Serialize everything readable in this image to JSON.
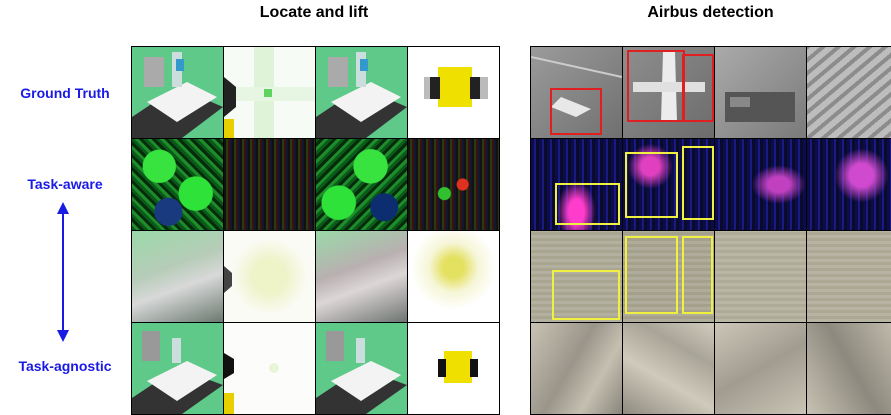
{
  "panels": {
    "left_title": "Locate and lift",
    "right_title": "Airbus detection"
  },
  "rows": {
    "ground_truth": "Ground Truth",
    "task_aware": "Task-aware",
    "task_agnostic": "Task-agnostic"
  },
  "colors": {
    "label_blue": "#1a1ae6",
    "gt_box": "#e02020",
    "pred_box": "#f0f040"
  }
}
